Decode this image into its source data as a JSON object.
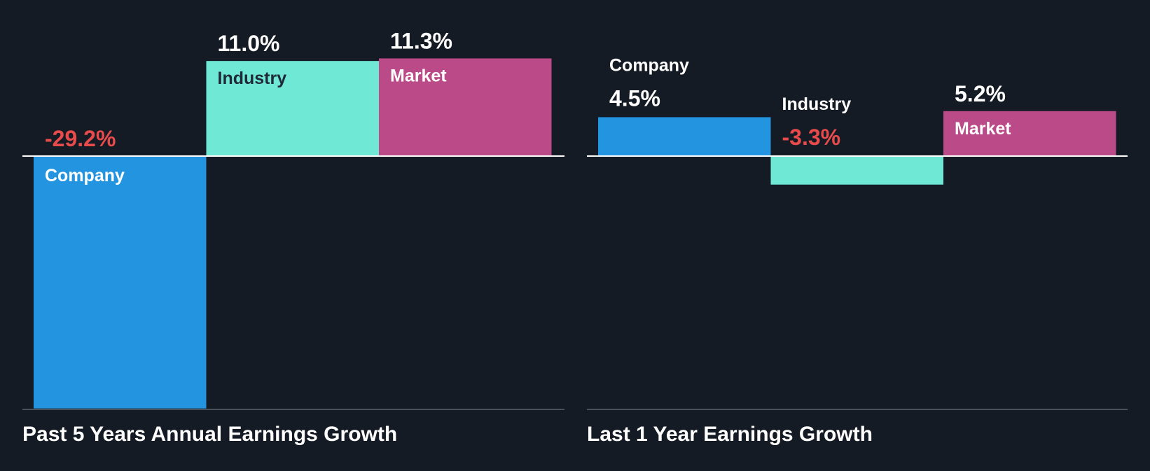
{
  "colors": {
    "background": "#151b24",
    "company": "#2394e0",
    "industry": "#6fe8d6",
    "market": "#bb4a88",
    "positive_label": "#ffffff",
    "negative_label": "#e84b4b",
    "axis": "#ffffff",
    "baseline": "#4a5059"
  },
  "chart_data": [
    {
      "type": "bar",
      "title": "Past 5 Years Annual Earnings Growth",
      "categories": [
        "Company",
        "Industry",
        "Market"
      ],
      "values": [
        -29.2,
        11.0,
        11.3
      ],
      "value_labels": [
        "-29.2%",
        "11.0%",
        "11.3%"
      ],
      "ylim": [
        -29.2,
        11.3
      ],
      "grid": false,
      "legend": "none"
    },
    {
      "type": "bar",
      "title": "Last 1 Year Earnings Growth",
      "categories": [
        "Company",
        "Industry",
        "Market"
      ],
      "values": [
        4.5,
        -3.3,
        5.2
      ],
      "value_labels": [
        "4.5%",
        "-3.3%",
        "5.2%"
      ],
      "ylim": [
        -29.2,
        11.3
      ],
      "grid": false,
      "legend": "none"
    }
  ]
}
